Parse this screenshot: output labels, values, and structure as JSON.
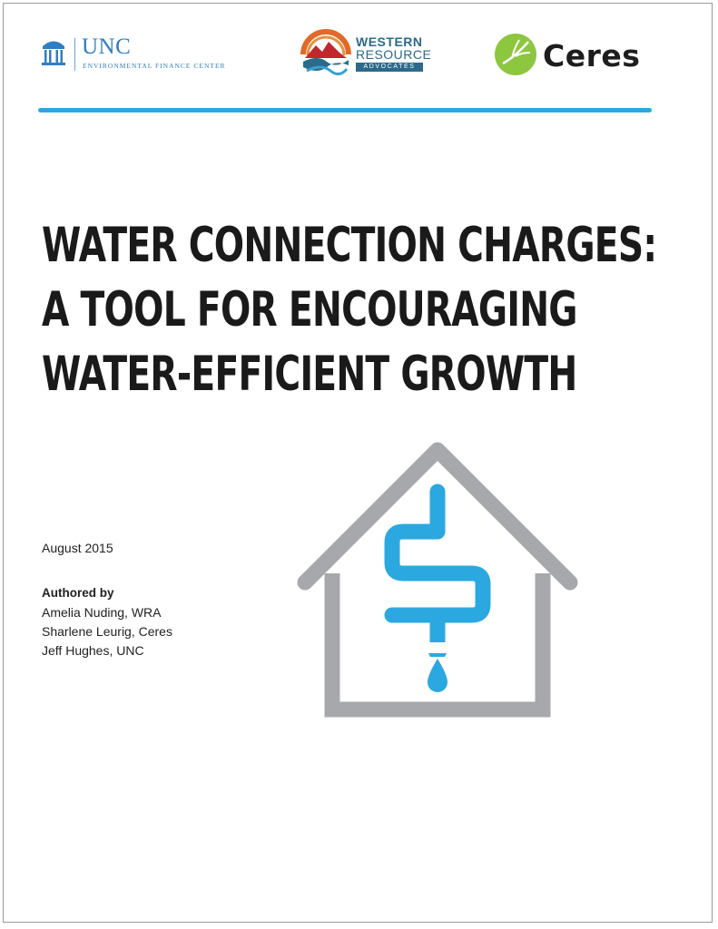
{
  "logos": {
    "unc": {
      "name": "UNC",
      "subtitle": "ENVIRONMENTAL FINANCE CENTER",
      "icon": "old-well-icon",
      "color": "#2f7ec1"
    },
    "wra": {
      "line1": "WESTERN",
      "line2": "RESOURCE",
      "line3": "ADVOCATES",
      "icon": "mountain-river-icon",
      "color": "#2b6a8a"
    },
    "ceres": {
      "name": "Ceres",
      "icon": "green-leaf-circle-icon",
      "color": "#8dc63f"
    }
  },
  "accent_color": "#2ba8e0",
  "title": {
    "line1": "WATER CONNECTION CHARGES:",
    "line2": "A TOOL FOR ENCOURAGING",
    "line3": "WATER-EFFICIENT GROWTH"
  },
  "date": "August 2015",
  "authors": {
    "heading": "Authored by",
    "list": [
      "Amelia Nuding, WRA",
      "Sharlene Leurig, Ceres",
      "Jeff Hughes, UNC"
    ]
  },
  "illustration": {
    "icon": "house-dollar-pipe-water-drop-icon",
    "house_color": "#a6a8ab",
    "pipe_color": "#2ba8e0"
  }
}
